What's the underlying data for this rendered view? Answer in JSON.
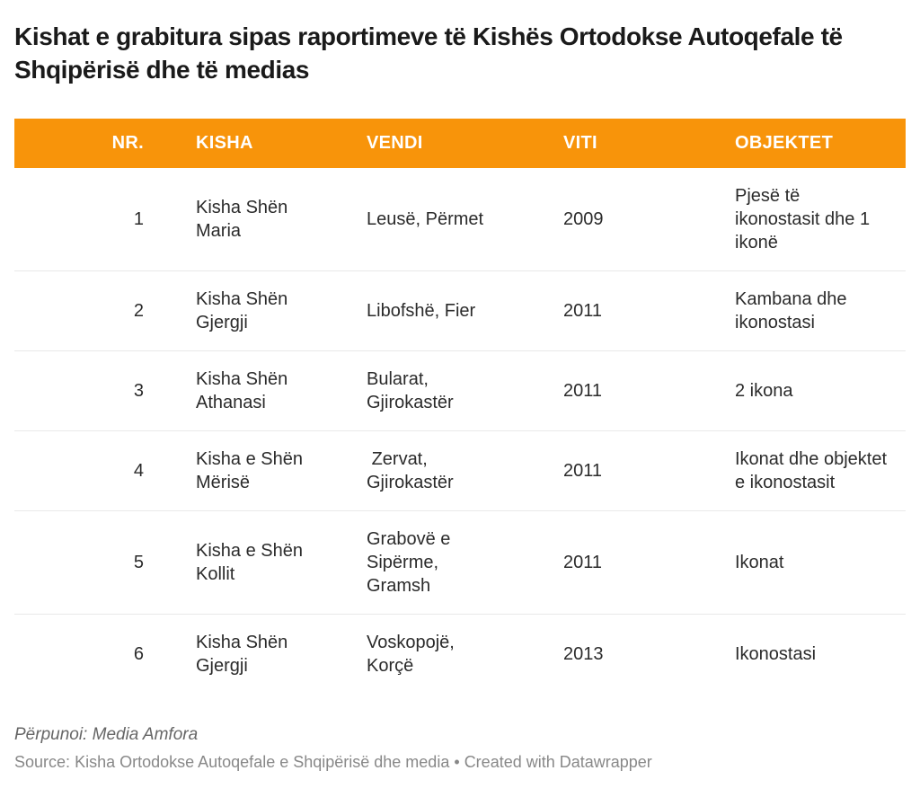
{
  "accent_color": "#F8940A",
  "separator_color": "#e9e9e9",
  "title": "Kishat e grabitura sipas raportimeve të Kishës Ortodokse Autoqefale të Shqipërisë dhe të medias",
  "chart_data": {
    "type": "table",
    "title": "Kishat e grabitura sipas raportimeve të Kishës Ortodokse Autoqefale të Shqipërisë dhe të medias",
    "columns": [
      "NR.",
      "KISHA",
      "VENDI",
      "VITI",
      "OBJEKTET"
    ],
    "col_keys": [
      "nr",
      "kisha",
      "vendi",
      "viti",
      "objektet"
    ],
    "rows": [
      [
        "1",
        "Kisha Shën Maria",
        "Leusë, Përmet",
        "2009",
        "Pjesë të ikonostasit dhe 1 ikonë"
      ],
      [
        "2",
        "Kisha Shën Gjergji",
        "Libofshë, Fier",
        "2011",
        "Kambana dhe ikonostasi"
      ],
      [
        "3",
        "Kisha Shën Athanasi",
        "Bularat, Gjirokastër",
        "2011",
        "2 ikona"
      ],
      [
        "4",
        "Kisha e Shën Mërisë",
        " Zervat, Gjirokastër",
        "2011",
        "Ikonat dhe objektet e ikonostasit"
      ],
      [
        "5",
        "Kisha e Shën Kollit",
        "Grabovë e Sipërme, Gramsh",
        "2011",
        "Ikonat"
      ],
      [
        "6",
        "Kisha Shën Gjergji",
        "Voskopojë, Korçë",
        "2013",
        "Ikonostasi"
      ]
    ]
  },
  "footer": {
    "byline": "Përpunoi: Media Amfora",
    "source_label": "Source:",
    "source_text": "Kisha Ortodokse Autoqefale e Shqipërisë dhe media",
    "separator": "•",
    "credit": "Created with Datawrapper"
  }
}
